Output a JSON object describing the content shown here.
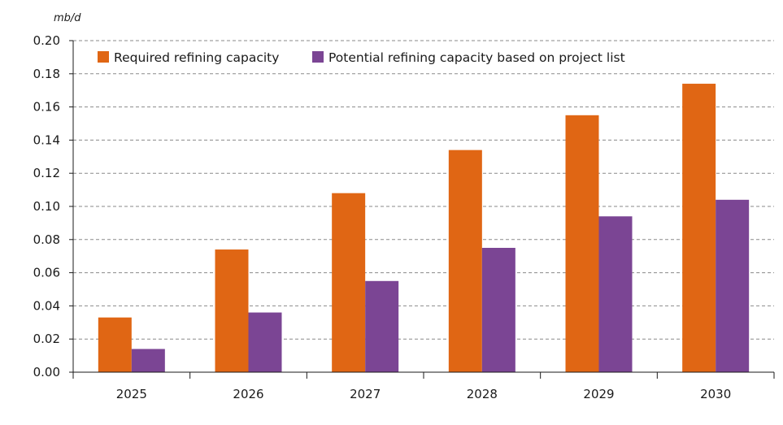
{
  "chart_data": {
    "type": "bar",
    "unit_label": "mb/d",
    "categories": [
      "2025",
      "2026",
      "2027",
      "2028",
      "2029",
      "2030"
    ],
    "series": [
      {
        "name": "Required refining capacity",
        "color": "#e06614",
        "values": [
          0.033,
          0.074,
          0.108,
          0.134,
          0.155,
          0.174
        ]
      },
      {
        "name": "Potential refining capacity based on project list",
        "color": "#7b4594",
        "values": [
          0.014,
          0.036,
          0.055,
          0.075,
          0.094,
          0.104
        ]
      }
    ],
    "ylim": [
      0,
      0.2
    ],
    "y_ticks": [
      "0.00",
      "0.02",
      "0.04",
      "0.06",
      "0.08",
      "0.10",
      "0.12",
      "0.14",
      "0.16",
      "0.18",
      "0.20"
    ],
    "grid": true,
    "legend_position": "top-left"
  }
}
